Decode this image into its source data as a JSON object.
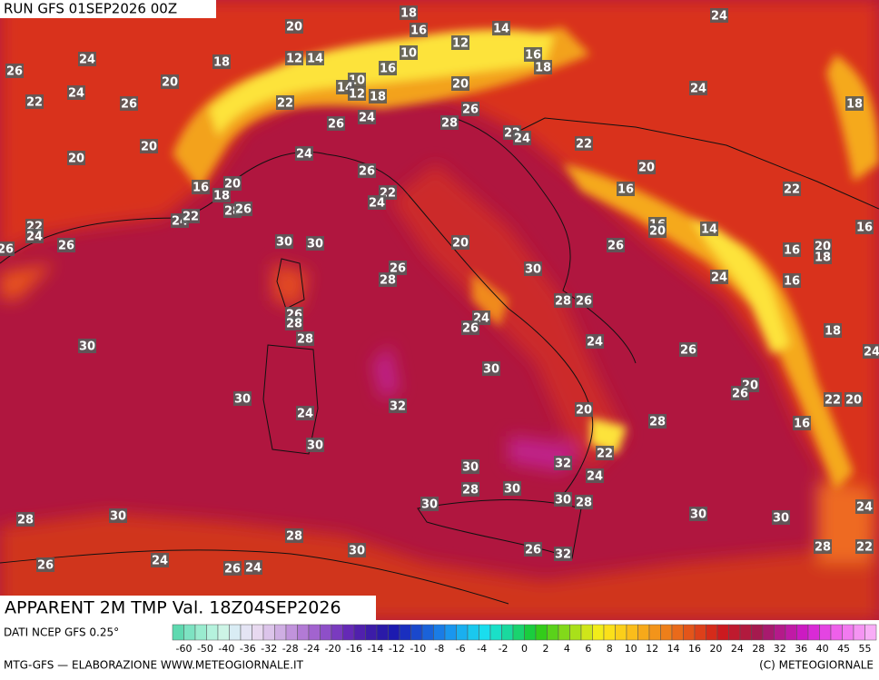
{
  "header": {
    "run": "RUN GFS 01SEP2026 00Z"
  },
  "title": "APPARENT 2M TMP Val. 18Z04SEP2026",
  "source": "DATI NCEP GFS 0.25°",
  "legend": {
    "labels": [
      -60,
      -50,
      -40,
      -36,
      -32,
      -28,
      -24,
      -20,
      -16,
      -14,
      -12,
      -10,
      -8,
      -6,
      -4,
      -2,
      0,
      2,
      4,
      6,
      8,
      10,
      12,
      14,
      16,
      20,
      24,
      28,
      32,
      36,
      40,
      45,
      55
    ]
  },
  "footer": {
    "left": "MTG-GFS — ELABORAZIONE WWW.METEOGIORNALE.IT",
    "right": "(C) METEOGIORNALE"
  },
  "map_labels": [
    18,
    16,
    14,
    12,
    20,
    24,
    26,
    24,
    18,
    12,
    14,
    10,
    16,
    16,
    18,
    10,
    14,
    12,
    18,
    20,
    24,
    22,
    26,
    22,
    26,
    24,
    28,
    26,
    20,
    24,
    18,
    22,
    24,
    22,
    20,
    20,
    24,
    26,
    20,
    16,
    22,
    16,
    18,
    20,
    28,
    26,
    24,
    22,
    22,
    24,
    22,
    24,
    26,
    26,
    30,
    30,
    20,
    26,
    16,
    20,
    14,
    16,
    16,
    20,
    18,
    30,
    26,
    28,
    24,
    16,
    26,
    28,
    28,
    26,
    24,
    26,
    28,
    24,
    26,
    30,
    18,
    24,
    30,
    30,
    32,
    20,
    26,
    22,
    20,
    20,
    24,
    28,
    16,
    30,
    22,
    32,
    24,
    30,
    28,
    30,
    30,
    30,
    28,
    24,
    28,
    30,
    30,
    30,
    28,
    30,
    26,
    32,
    28,
    22,
    24,
    26,
    26,
    24
  ]
}
